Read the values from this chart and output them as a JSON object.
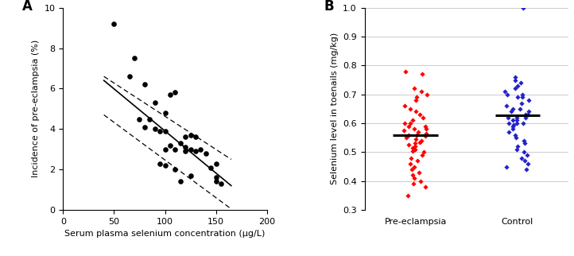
{
  "panel_A": {
    "title": "A",
    "xlabel": "Serum plasma selenium concentration (μg/L)",
    "ylabel": "Incidence of pre-eclampsia (%)",
    "xlim": [
      0,
      200
    ],
    "ylim": [
      0,
      10
    ],
    "xticks": [
      0,
      50,
      100,
      150,
      200
    ],
    "yticks": [
      0,
      2,
      4,
      6,
      8,
      10
    ],
    "scatter_x": [
      50,
      65,
      70,
      75,
      80,
      80,
      85,
      90,
      90,
      95,
      95,
      100,
      100,
      100,
      100,
      105,
      105,
      110,
      110,
      110,
      115,
      115,
      120,
      120,
      120,
      125,
      125,
      125,
      130,
      130,
      135,
      140,
      145,
      150,
      150,
      150,
      155
    ],
    "scatter_y": [
      9.2,
      6.6,
      7.5,
      4.5,
      6.2,
      4.1,
      4.5,
      5.3,
      4.0,
      3.9,
      2.3,
      4.8,
      3.9,
      3.0,
      2.2,
      5.7,
      3.2,
      5.8,
      3.0,
      2.0,
      3.3,
      1.4,
      3.6,
      3.1,
      2.9,
      3.7,
      3.0,
      1.7,
      3.6,
      2.9,
      3.0,
      2.8,
      2.1,
      2.3,
      1.6,
      1.4,
      1.3
    ],
    "reg_x0": 40,
    "reg_x1": 165,
    "reg_y0": 6.4,
    "reg_y1": 1.2,
    "ci_upper_x0": 40,
    "ci_upper_x1": 165,
    "ci_upper_y0": 6.6,
    "ci_upper_y1": 2.5,
    "ci_lower_x0": 40,
    "ci_lower_x1": 165,
    "ci_lower_y0": 4.7,
    "ci_lower_y1": 0.05
  },
  "panel_B": {
    "title": "B",
    "ylabel": "Selenium level in toenails (mg/kg)",
    "ylim": [
      0.3,
      1.0
    ],
    "yticks": [
      0.3,
      0.4,
      0.5,
      0.6,
      0.7,
      0.8,
      0.9,
      1.0
    ],
    "categories": [
      "Pre-eclampsia",
      "Control"
    ],
    "pre_eclampsia_median": 0.558,
    "control_median": 0.628,
    "pre_eclampsia_values": [
      0.78,
      0.77,
      0.72,
      0.71,
      0.7,
      0.69,
      0.68,
      0.66,
      0.65,
      0.64,
      0.63,
      0.62,
      0.61,
      0.6,
      0.6,
      0.59,
      0.59,
      0.58,
      0.58,
      0.575,
      0.57,
      0.565,
      0.56,
      0.56,
      0.555,
      0.55,
      0.545,
      0.54,
      0.535,
      0.53,
      0.525,
      0.52,
      0.515,
      0.51,
      0.505,
      0.5,
      0.49,
      0.48,
      0.47,
      0.46,
      0.45,
      0.44,
      0.43,
      0.42,
      0.41,
      0.4,
      0.39,
      0.38,
      0.35
    ],
    "control_values": [
      1.0,
      0.76,
      0.75,
      0.74,
      0.73,
      0.72,
      0.71,
      0.7,
      0.7,
      0.69,
      0.69,
      0.68,
      0.67,
      0.66,
      0.65,
      0.65,
      0.64,
      0.64,
      0.63,
      0.63,
      0.62,
      0.62,
      0.62,
      0.61,
      0.61,
      0.6,
      0.6,
      0.6,
      0.595,
      0.59,
      0.58,
      0.57,
      0.56,
      0.55,
      0.54,
      0.53,
      0.52,
      0.51,
      0.5,
      0.49,
      0.48,
      0.47,
      0.46,
      0.45,
      0.44
    ],
    "pre_color": "#FF0000",
    "control_color": "#2222CC"
  }
}
